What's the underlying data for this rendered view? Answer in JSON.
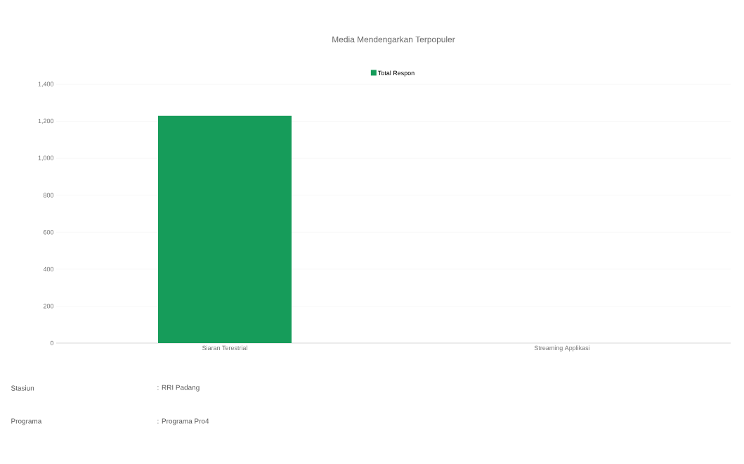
{
  "chart_data": {
    "type": "bar",
    "title": "Media Mendengarkan Terpopuler",
    "categories": [
      "Siaran Terestrial",
      "Streaming Applikasi"
    ],
    "series": [
      {
        "name": "Total Respon",
        "color": "#169c5a",
        "values": [
          1230,
          0
        ]
      }
    ],
    "ylim": [
      0,
      1400
    ],
    "yticks": [
      0,
      {
        "value": 200,
        "label": "200"
      },
      {
        "value": 400,
        "label": "400"
      },
      {
        "value": 600,
        "label": "600"
      },
      {
        "value": 800,
        "label": "800"
      },
      {
        "value": 1000,
        "label": "1,000"
      },
      {
        "value": 1200,
        "label": "1,200"
      },
      {
        "value": 1400,
        "label": "1,400"
      }
    ],
    "grid": "y",
    "legend": "top",
    "annotations": [
      "Stasiun",
      ": RRI Padang",
      "Programa",
      ": Programa Pro4"
    ]
  }
}
